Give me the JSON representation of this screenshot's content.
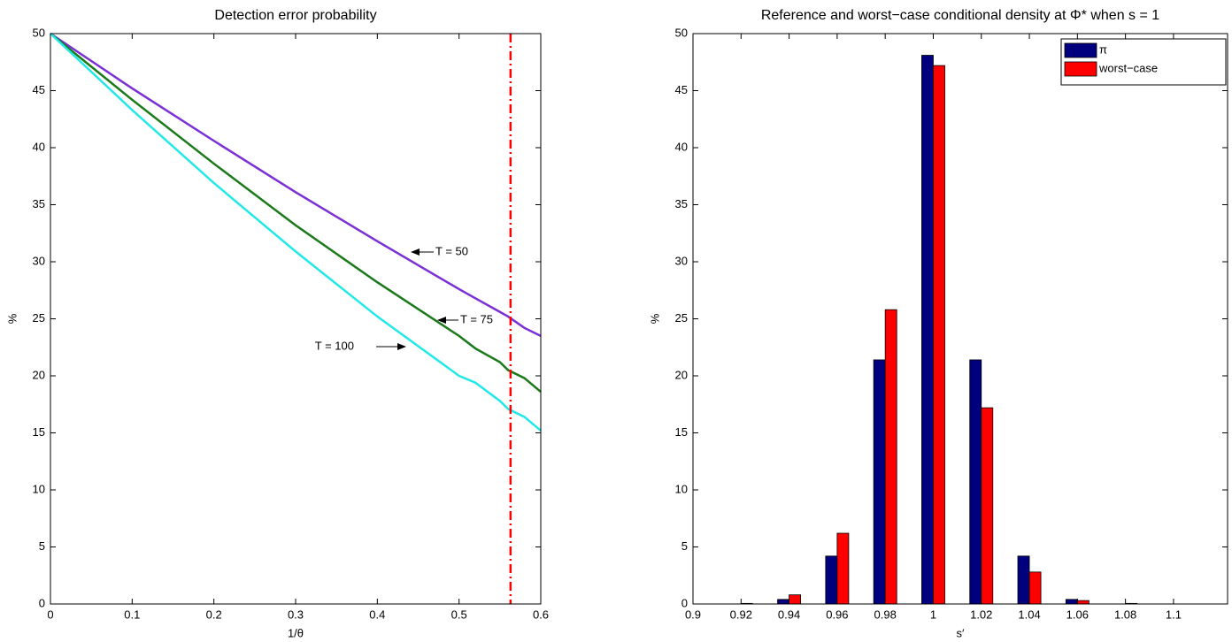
{
  "chart_data": [
    {
      "type": "line",
      "title": "Detection error probability",
      "xlabel": "1/θ",
      "ylabel": "%",
      "x": [
        0,
        0.1,
        0.2,
        0.3,
        0.4,
        0.5,
        0.52,
        0.55,
        0.56,
        0.58,
        0.6
      ],
      "series": [
        {
          "name": "T = 50",
          "color": "#7b2fd6",
          "values": [
            50,
            45.2,
            40.6,
            36.1,
            31.8,
            27.6,
            26.8,
            25.6,
            25.2,
            24.2,
            23.5
          ]
        },
        {
          "name": "T = 75",
          "color": "#1a7a1a",
          "values": [
            50,
            44.2,
            38.6,
            33.2,
            28.2,
            23.5,
            22.4,
            21.2,
            20.5,
            19.8,
            18.6
          ]
        },
        {
          "name": "T = 100",
          "color": "#22e8e8",
          "values": [
            50,
            43.3,
            36.9,
            30.9,
            25.2,
            20.0,
            19.4,
            17.8,
            17.1,
            16.4,
            15.2
          ]
        }
      ],
      "vline": {
        "value": 0.563,
        "color": "#ff0000"
      },
      "xlim": [
        0,
        0.6
      ],
      "xticks": [
        0,
        0.1,
        0.2,
        0.3,
        0.4,
        0.5,
        0.6
      ],
      "ylim": [
        0,
        50
      ],
      "yticks": [
        0,
        5,
        10,
        15,
        20,
        25,
        30,
        35,
        40,
        45,
        50
      ],
      "grid": false
    },
    {
      "type": "bar",
      "title": "Reference and worst−case conditional density at Φ* when s = 1",
      "xlabel": "s′",
      "ylabel": "%",
      "x": [
        0.9,
        0.92,
        0.94,
        0.96,
        0.98,
        1,
        1.02,
        1.04,
        1.06,
        1.08,
        1.1
      ],
      "series": [
        {
          "name": "π",
          "color": "#00007f",
          "values": [
            0,
            0,
            0.4,
            4.2,
            21.4,
            48.1,
            21.4,
            4.2,
            0.4,
            0,
            0
          ]
        },
        {
          "name": "worst−case",
          "color": "#ff0000",
          "values": [
            0,
            0.05,
            0.8,
            6.2,
            25.8,
            47.2,
            17.2,
            2.8,
            0.3,
            0.05,
            0
          ]
        }
      ],
      "legend": "upper right",
      "xlim": [
        0.9,
        1.1225
      ],
      "xticks": [
        0.9,
        0.92,
        0.94,
        0.96,
        0.98,
        1,
        1.02,
        1.04,
        1.06,
        1.08,
        1.1
      ],
      "ylim": [
        0,
        50
      ],
      "yticks": [
        0,
        5,
        10,
        15,
        20,
        25,
        30,
        35,
        40,
        45,
        50
      ],
      "grid": false
    }
  ]
}
